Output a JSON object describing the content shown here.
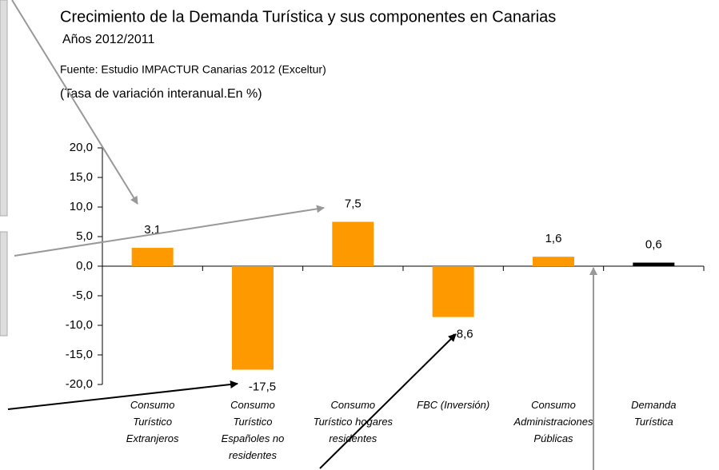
{
  "chart_data": {
    "type": "bar",
    "title": "Crecimiento de la Demanda Turística y sus componentes en Canarias",
    "subtitle": "Años 2012/2011",
    "source": "Fuente: Estudio IMPACTUR Canarias 2012 (Exceltur)",
    "ylabel": "(Tasa de variación interanual.En %)",
    "categories": [
      "Consumo\nTurístico\nExtranjeros",
      "Consumo\nTurístico\nEspañoles no\nresidentes",
      "Consumo\nTurístico hogares\nresidentes",
      "FBC (Inversión)",
      "Consumo\nAdministraciones\nPúblicas",
      "Demanda\nTurística"
    ],
    "values": [
      3.1,
      -17.5,
      7.5,
      -8.6,
      1.6,
      0.6
    ],
    "value_labels": [
      "3,1",
      "-17,5",
      "7,5",
      "-8,6",
      "1,6",
      "0,6"
    ],
    "colors": [
      "#ff9900",
      "#ff9900",
      "#ff9900",
      "#ff9900",
      "#ff9900",
      "#000000"
    ],
    "ylim": [
      -20,
      20
    ],
    "yticks": [
      {
        "value": -20,
        "label": "-20,0"
      },
      {
        "value": -15,
        "label": "-15,0"
      },
      {
        "value": -10,
        "label": "-10,0"
      },
      {
        "value": -5,
        "label": "-5,0"
      },
      {
        "value": 0,
        "label": "0,0"
      },
      {
        "value": 5,
        "label": "5,0"
      },
      {
        "value": 10,
        "label": "10,0"
      },
      {
        "value": 15,
        "label": "15,0"
      },
      {
        "value": 20,
        "label": "20,0"
      }
    ]
  }
}
